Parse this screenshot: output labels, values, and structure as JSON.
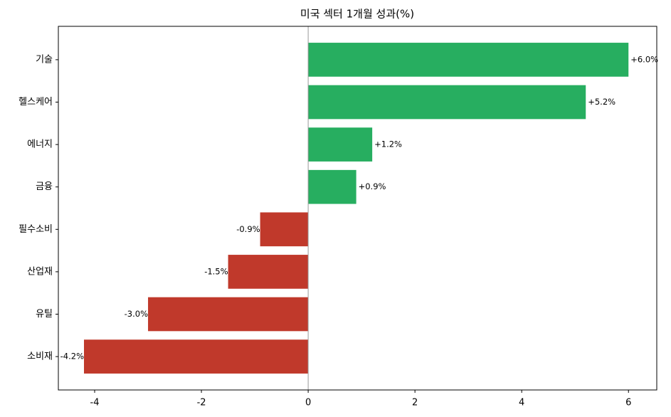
{
  "chart_data": {
    "type": "barh",
    "title": "미국 섹터 1개월 성과(%)",
    "categories": [
      "기술",
      "헬스케어",
      "에너지",
      "금융",
      "필수소비",
      "산업재",
      "유틸",
      "소비재"
    ],
    "values": [
      6.0,
      5.2,
      1.2,
      0.9,
      -0.9,
      -1.5,
      -3.0,
      -4.2
    ],
    "value_labels": [
      "+6.0%",
      "+5.2%",
      "+1.2%",
      "+0.9%",
      "-0.9%",
      "-1.5%",
      "-3.0%",
      "-4.2%"
    ],
    "colors": [
      "#27ae60",
      "#27ae60",
      "#27ae60",
      "#27ae60",
      "#c0392b",
      "#c0392b",
      "#c0392b",
      "#c0392b"
    ],
    "xlim": [
      -4.68,
      6.53
    ],
    "xticks": [
      -4,
      -2,
      0,
      2,
      4,
      6
    ]
  }
}
